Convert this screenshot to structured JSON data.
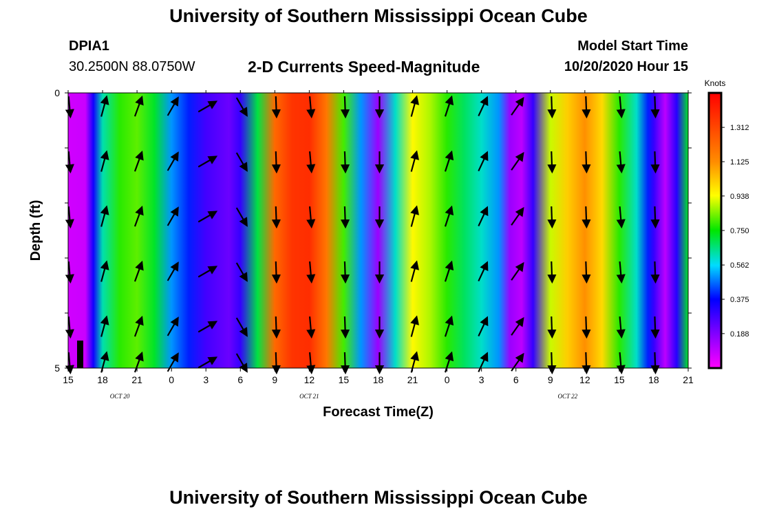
{
  "header": {
    "title": "University of Southern Mississippi Ocean Cube",
    "station_id": "DPIA1",
    "station_coords": "30.2500N 88.0750W",
    "plot_title": "2-D Currents Speed-Magnitude",
    "model_start_label": "Model Start Time",
    "model_start_value": "10/20/2020 Hour 15"
  },
  "footer": {
    "title": "University of Southern Mississippi Ocean Cube"
  },
  "chart_data": {
    "type": "heatmap",
    "title": "2-D Currents Speed-Magnitude",
    "xlabel": "Forecast Time(Z)",
    "ylabel": "Depth (ft)",
    "x_range_hours": [
      0,
      54
    ],
    "y_range_ft": [
      0,
      5
    ],
    "y_ticks": [
      "0",
      "5"
    ],
    "x_ticks": [
      {
        "hour": 0,
        "label": "15"
      },
      {
        "hour": 3,
        "label": "18"
      },
      {
        "hour": 6,
        "label": "21"
      },
      {
        "hour": 9,
        "label": "0"
      },
      {
        "hour": 12,
        "label": "3"
      },
      {
        "hour": 15,
        "label": "6"
      },
      {
        "hour": 18,
        "label": "9"
      },
      {
        "hour": 21,
        "label": "12"
      },
      {
        "hour": 24,
        "label": "15"
      },
      {
        "hour": 27,
        "label": "18"
      },
      {
        "hour": 30,
        "label": "21"
      },
      {
        "hour": 33,
        "label": "0"
      },
      {
        "hour": 36,
        "label": "3"
      },
      {
        "hour": 39,
        "label": "6"
      },
      {
        "hour": 42,
        "label": "9"
      },
      {
        "hour": 45,
        "label": "12"
      },
      {
        "hour": 48,
        "label": "15"
      },
      {
        "hour": 51,
        "label": "18"
      },
      {
        "hour": 54,
        "label": "21"
      }
    ],
    "date_labels": [
      {
        "hour": 4.5,
        "label": "OCT 20"
      },
      {
        "hour": 21,
        "label": "OCT 21"
      },
      {
        "hour": 43.5,
        "label": "OCT 22"
      }
    ],
    "colorbar": {
      "unit": "Knots",
      "min": 0.0,
      "max": 1.5,
      "tick_values": [
        0.188,
        0.375,
        0.562,
        0.75,
        0.938,
        1.125,
        1.312
      ],
      "tick_labels": [
        "0.188",
        "0.375",
        "0.562",
        "0.750",
        "0.938",
        "1.125",
        "1.312"
      ]
    },
    "speed_by_hour": [
      {
        "hour": 0,
        "value": 0.07
      },
      {
        "hour": 1.5,
        "value": 0.08
      },
      {
        "hour": 2.2,
        "value": 0.35
      },
      {
        "hour": 3,
        "value": 0.62
      },
      {
        "hour": 4.5,
        "value": 0.78
      },
      {
        "hour": 6,
        "value": 0.82
      },
      {
        "hour": 7.5,
        "value": 0.72
      },
      {
        "hour": 9,
        "value": 0.5
      },
      {
        "hour": 10.5,
        "value": 0.4
      },
      {
        "hour": 12,
        "value": 0.28
      },
      {
        "hour": 14,
        "value": 0.22
      },
      {
        "hour": 15,
        "value": 0.3
      },
      {
        "hour": 16.5,
        "value": 0.7
      },
      {
        "hour": 18,
        "value": 1.22
      },
      {
        "hour": 19.5,
        "value": 1.36
      },
      {
        "hour": 21,
        "value": 1.38
      },
      {
        "hour": 22.5,
        "value": 1.18
      },
      {
        "hour": 24,
        "value": 0.8
      },
      {
        "hour": 25.5,
        "value": 0.5
      },
      {
        "hour": 27,
        "value": 0.15
      },
      {
        "hour": 28.5,
        "value": 0.6
      },
      {
        "hour": 30,
        "value": 0.95
      },
      {
        "hour": 31.5,
        "value": 0.88
      },
      {
        "hour": 33,
        "value": 0.78
      },
      {
        "hour": 34.5,
        "value": 0.68
      },
      {
        "hour": 36,
        "value": 0.6
      },
      {
        "hour": 37.5,
        "value": 0.5
      },
      {
        "hour": 38.5,
        "value": 0.15
      },
      {
        "hour": 39.5,
        "value": 0.1
      },
      {
        "hour": 40.5,
        "value": 0.3
      },
      {
        "hour": 42,
        "value": 0.9
      },
      {
        "hour": 43.5,
        "value": 1.02
      },
      {
        "hour": 45,
        "value": 1.12
      },
      {
        "hour": 46.5,
        "value": 1.0
      },
      {
        "hour": 48,
        "value": 0.78
      },
      {
        "hour": 49.5,
        "value": 0.6
      },
      {
        "hour": 50.5,
        "value": 0.4
      },
      {
        "hour": 51,
        "value": 0.3
      },
      {
        "hour": 52,
        "value": 0.1
      },
      {
        "hour": 53,
        "value": 0.32
      },
      {
        "hour": 54,
        "value": 0.72
      }
    ],
    "depth_rows_ft": [
      0.25,
      1.25,
      2.25,
      3.25,
      4.25,
      4.9
    ],
    "vectors": [
      {
        "hour": 0,
        "dir_deg": 175
      },
      {
        "hour": 3,
        "dir_deg": 15
      },
      {
        "hour": 6,
        "dir_deg": 20
      },
      {
        "hour": 9,
        "dir_deg": 30
      },
      {
        "hour": 12,
        "dir_deg": 60
      },
      {
        "hour": 15,
        "dir_deg": 150
      },
      {
        "hour": 18,
        "dir_deg": 178
      },
      {
        "hour": 21,
        "dir_deg": 175
      },
      {
        "hour": 24,
        "dir_deg": 178
      },
      {
        "hour": 27,
        "dir_deg": 180
      },
      {
        "hour": 30,
        "dir_deg": 15
      },
      {
        "hour": 33,
        "dir_deg": 18
      },
      {
        "hour": 36,
        "dir_deg": 25
      },
      {
        "hour": 39,
        "dir_deg": 35
      },
      {
        "hour": 42,
        "dir_deg": 178
      },
      {
        "hour": 45,
        "dir_deg": 178
      },
      {
        "hour": 48,
        "dir_deg": 175
      },
      {
        "hour": 51,
        "dir_deg": 178
      }
    ]
  }
}
